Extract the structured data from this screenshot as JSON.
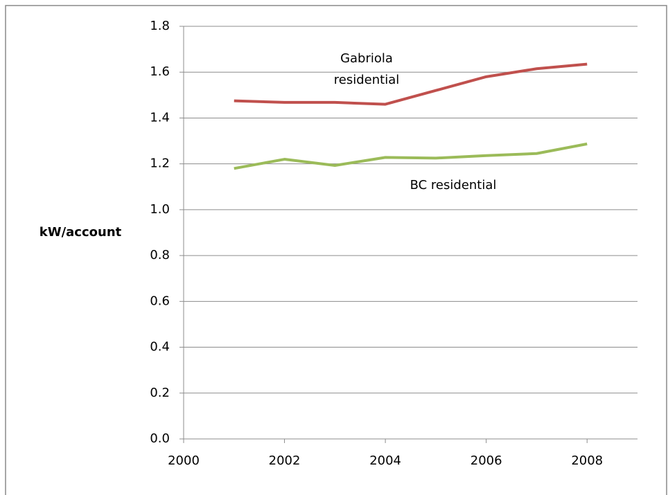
{
  "chart_data": {
    "type": "line",
    "y_label": "kW/account",
    "x": [
      2001,
      2002,
      2003,
      2004,
      2005,
      2006,
      2007,
      2008
    ],
    "series": [
      {
        "name": "Gabriola residential",
        "color": "#c0504d",
        "values": [
          1.475,
          1.468,
          1.468,
          1.46,
          1.52,
          1.58,
          1.615,
          1.635
        ]
      },
      {
        "name": "BC residential",
        "color": "#9bbb59",
        "values": [
          1.18,
          1.22,
          1.193,
          1.228,
          1.225,
          1.236,
          1.245,
          1.287
        ]
      }
    ],
    "xlim": [
      2000,
      2009
    ],
    "xticks": [
      2000,
      2002,
      2004,
      2006,
      2008
    ],
    "ylim": [
      0,
      1.8
    ],
    "yticks": [
      {
        "value": 0,
        "label": "0.0"
      },
      0.2,
      0.4,
      0.6,
      0.8,
      {
        "value": 1,
        "label": "1.0"
      },
      1.2,
      1.4,
      1.6,
      1.8
    ],
    "grid": true
  }
}
